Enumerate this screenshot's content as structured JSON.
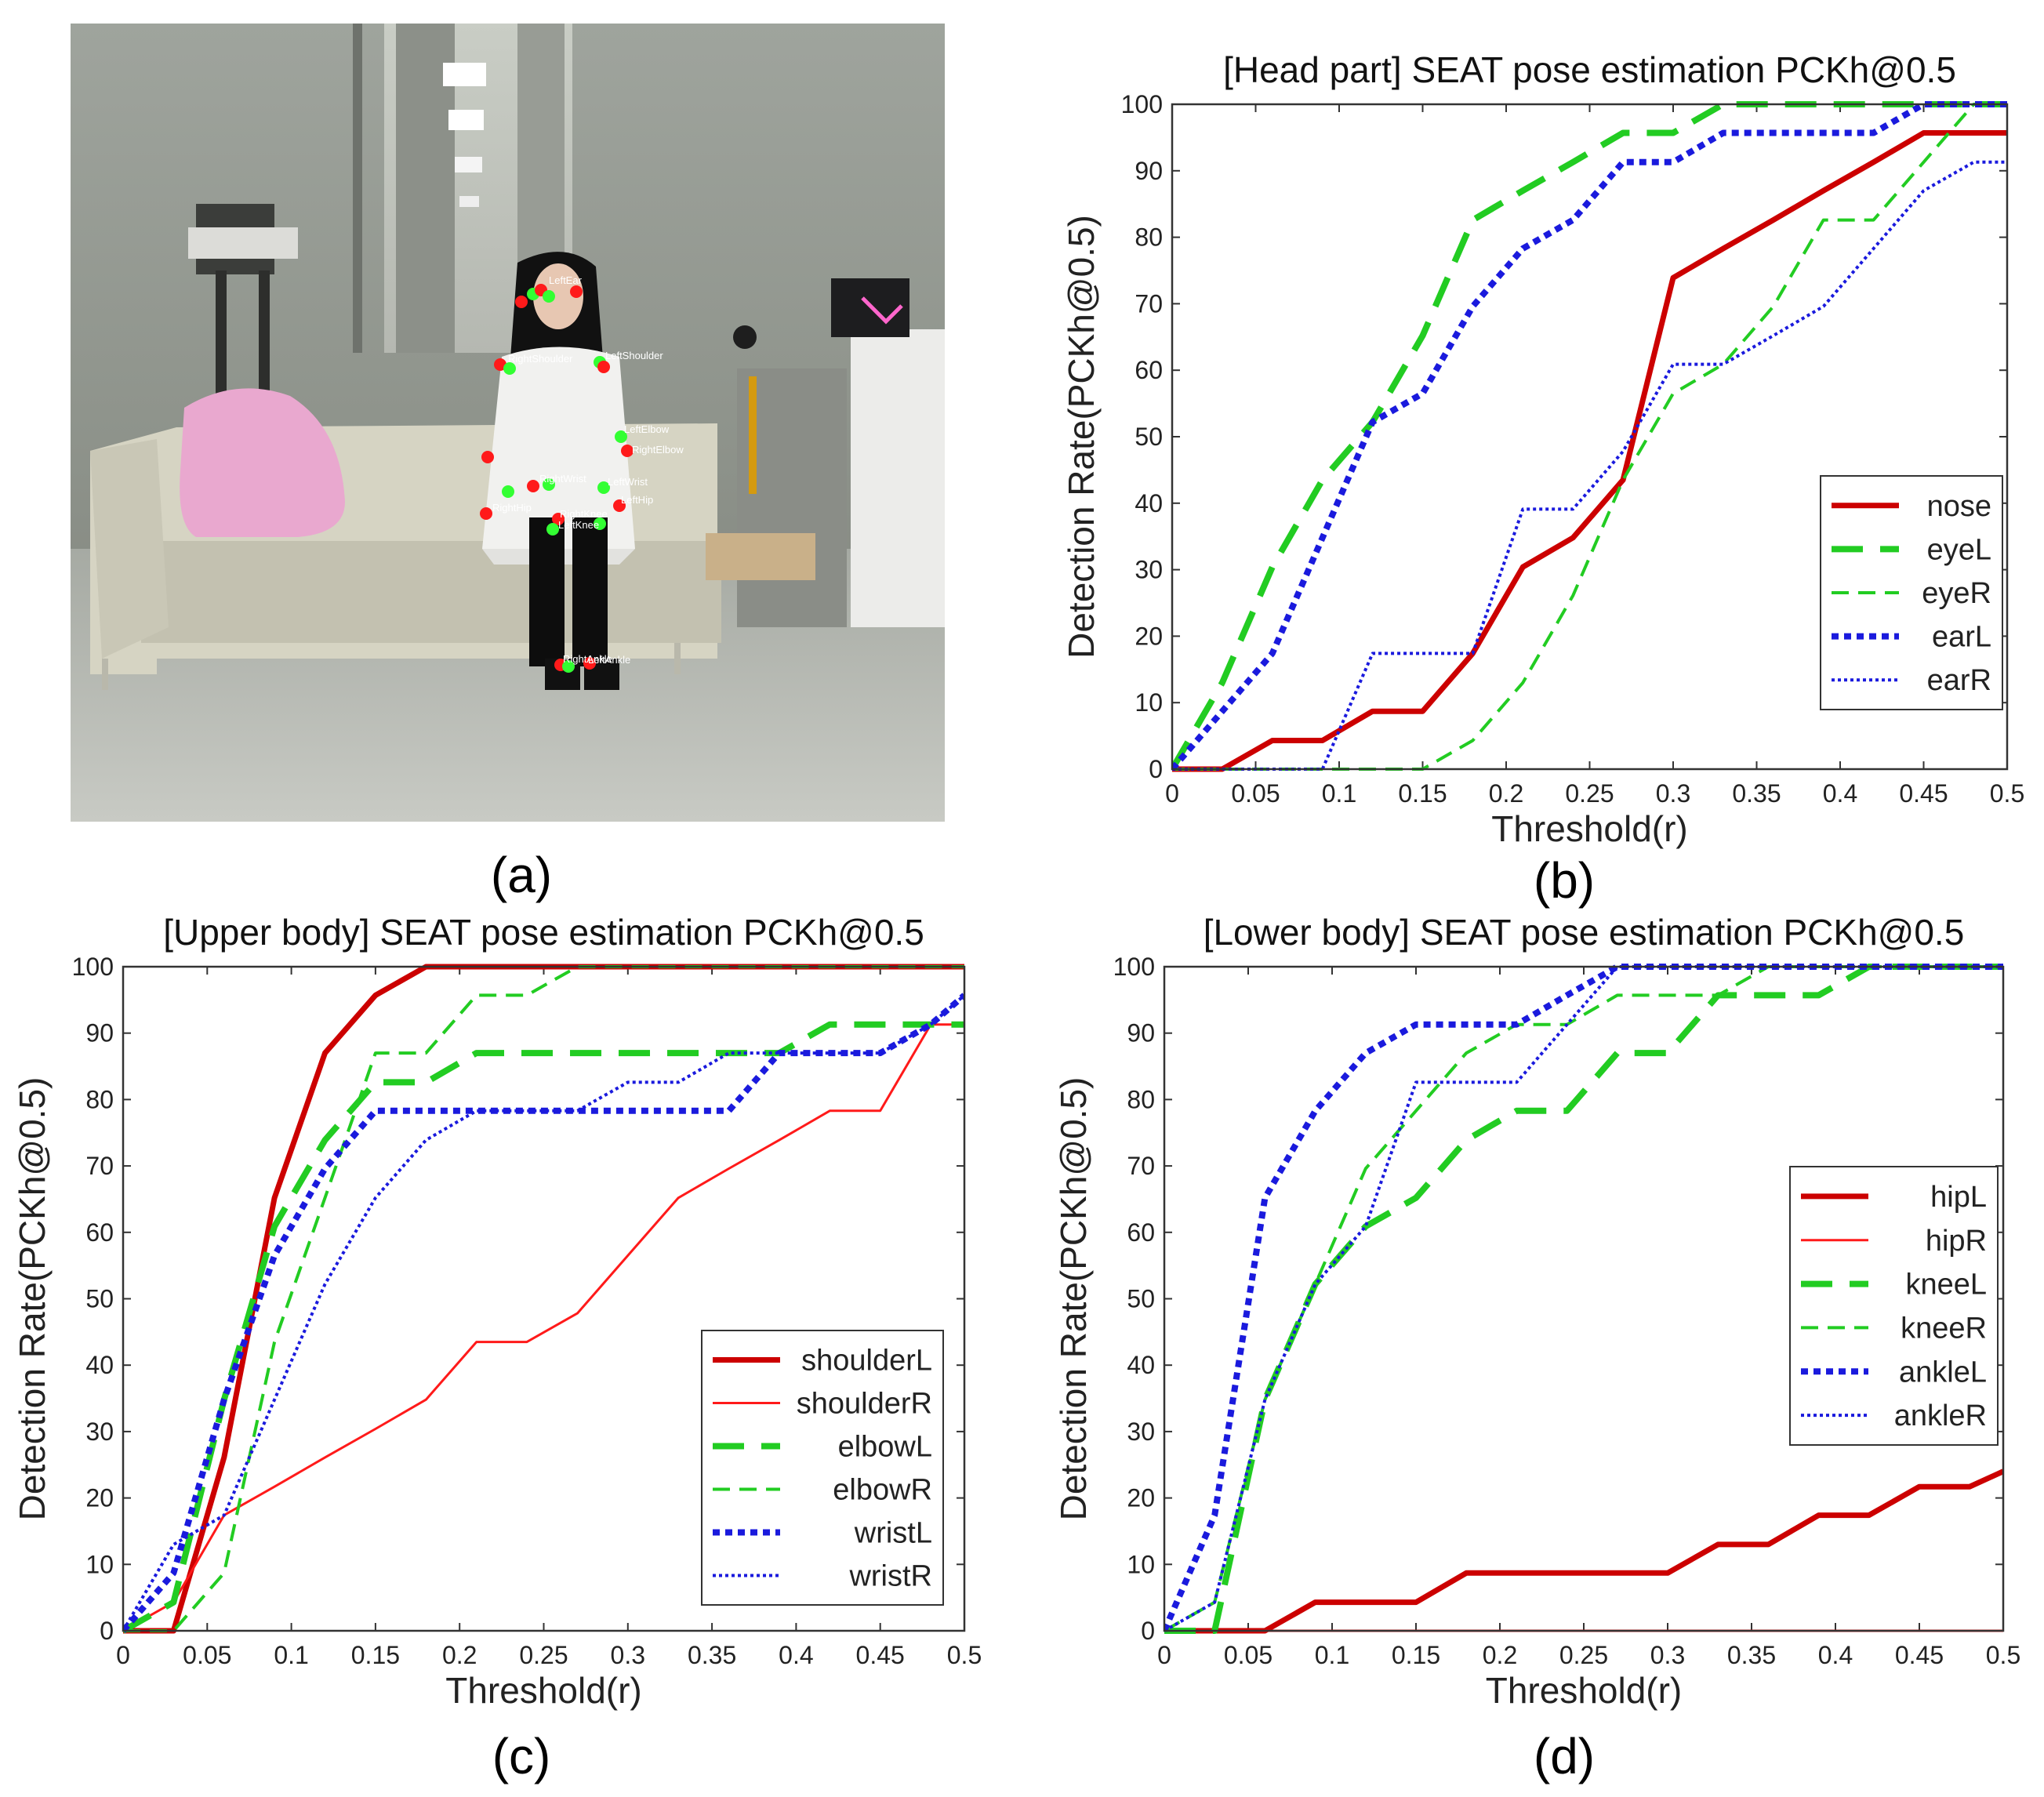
{
  "captions": {
    "a": "(a)",
    "b": "(b)",
    "c": "(c)",
    "d": "(d)"
  },
  "colors": {
    "red": "#cc0000",
    "green": "#22cc22",
    "blue": "#1a1add",
    "keypoint_red": "#ff1a1a",
    "keypoint_green": "#33ff33"
  },
  "photo": {
    "keypoint_labels": [
      "LeftEar",
      "RightShoulder",
      "LeftShoulder",
      "LeftElbow",
      "RightElbow",
      "RightWrist",
      "LeftWrist",
      "RightHip",
      "LeftHip",
      "RightKnee",
      "LeftKnee",
      "RightAnkle",
      "LeftAnkle"
    ]
  },
  "chart_data": [
    {
      "id": "head",
      "type": "line",
      "title": "[Head part] SEAT pose estimation PCKh@0.5",
      "xlabel": "Threshold(r)",
      "ylabel": "Detection Rate(PCKh@0.5)",
      "xlim": [
        0,
        0.5
      ],
      "ylim": [
        0,
        100
      ],
      "xticks": [
        0,
        0.05,
        0.1,
        0.15,
        0.2,
        0.25,
        0.3,
        0.35,
        0.4,
        0.45,
        0.5
      ],
      "xtick_labels": [
        "0",
        "0.05",
        "0.1",
        "0.15",
        "0.2",
        "0.25",
        "0.3",
        "0.35",
        "0.4",
        "0.45",
        "0.5"
      ],
      "yticks": [
        0,
        10,
        20,
        30,
        40,
        50,
        60,
        70,
        80,
        90,
        100
      ],
      "ytick_labels": [
        "0",
        "10",
        "20",
        "30",
        "40",
        "50",
        "60",
        "70",
        "80",
        "90",
        "100"
      ],
      "legend": "lower-right",
      "series": [
        {
          "name": "nose",
          "color": "#cc0000",
          "style": "solid",
          "width": 7,
          "x": [
            0,
            0.03,
            0.06,
            0.09,
            0.12,
            0.15,
            0.18,
            0.21,
            0.24,
            0.27,
            0.3,
            0.33,
            0.36,
            0.39,
            0.42,
            0.45,
            0.48,
            0.5
          ],
          "y": [
            0,
            0,
            4.3,
            4.3,
            8.7,
            8.7,
            17.4,
            30.4,
            34.8,
            43.5,
            73.9,
            78.3,
            82.6,
            87,
            91.3,
            95.7,
            95.7,
            95.7
          ]
        },
        {
          "name": "eyeL",
          "color": "#22cc22",
          "style": "dashed-thick",
          "width": 8,
          "x": [
            0,
            0.03,
            0.06,
            0.09,
            0.12,
            0.15,
            0.18,
            0.21,
            0.24,
            0.27,
            0.3,
            0.33,
            0.36,
            0.39,
            0.42,
            0.45,
            0.48,
            0.5
          ],
          "y": [
            0,
            13,
            30.4,
            43.5,
            52.2,
            65.2,
            82.6,
            87,
            91.3,
            95.7,
            95.7,
            100,
            100,
            100,
            100,
            100,
            100,
            100
          ]
        },
        {
          "name": "eyeR",
          "color": "#22cc22",
          "style": "dashed",
          "width": 4,
          "x": [
            0,
            0.03,
            0.06,
            0.09,
            0.12,
            0.15,
            0.18,
            0.21,
            0.24,
            0.27,
            0.3,
            0.33,
            0.36,
            0.39,
            0.42,
            0.45,
            0.48,
            0.5
          ],
          "y": [
            0,
            0,
            0,
            0,
            0,
            0,
            4.3,
            13,
            26.1,
            43.5,
            56.5,
            60.9,
            69.6,
            82.6,
            82.6,
            91.3,
            100,
            100
          ]
        },
        {
          "name": "earL",
          "color": "#1a1add",
          "style": "dotted-thick",
          "width": 8,
          "x": [
            0,
            0.03,
            0.06,
            0.09,
            0.12,
            0.15,
            0.18,
            0.21,
            0.24,
            0.27,
            0.3,
            0.33,
            0.36,
            0.39,
            0.42,
            0.45,
            0.48,
            0.5
          ],
          "y": [
            0,
            8.7,
            17.4,
            34.8,
            52.2,
            56.5,
            69.6,
            78.3,
            82.6,
            91.3,
            91.3,
            95.7,
            95.7,
            95.7,
            95.7,
            100,
            100,
            100
          ]
        },
        {
          "name": "earR",
          "color": "#1a1add",
          "style": "dotted",
          "width": 4,
          "x": [
            0,
            0.03,
            0.06,
            0.09,
            0.12,
            0.15,
            0.18,
            0.21,
            0.24,
            0.27,
            0.3,
            0.33,
            0.36,
            0.39,
            0.42,
            0.45,
            0.48,
            0.5
          ],
          "y": [
            0,
            0,
            0,
            0,
            17.4,
            17.4,
            17.4,
            39.1,
            39.1,
            47.8,
            60.9,
            60.9,
            65.2,
            69.6,
            78.3,
            87,
            91.3,
            91.3
          ]
        }
      ]
    },
    {
      "id": "upper",
      "type": "line",
      "title": "[Upper body] SEAT pose estimation PCKh@0.5",
      "xlabel": "Threshold(r)",
      "ylabel": "Detection Rate(PCKh@0.5)",
      "xlim": [
        0,
        0.5
      ],
      "ylim": [
        0,
        100
      ],
      "xticks": [
        0,
        0.05,
        0.1,
        0.15,
        0.2,
        0.25,
        0.3,
        0.35,
        0.4,
        0.45,
        0.5
      ],
      "xtick_labels": [
        "0",
        "0.05",
        "0.1",
        "0.15",
        "0.2",
        "0.25",
        "0.3",
        "0.35",
        "0.4",
        "0.45",
        "0.5"
      ],
      "yticks": [
        0,
        10,
        20,
        30,
        40,
        50,
        60,
        70,
        80,
        90,
        100
      ],
      "ytick_labels": [
        "0",
        "10",
        "20",
        "30",
        "40",
        "50",
        "60",
        "70",
        "80",
        "90",
        "100"
      ],
      "legend": "lower-right",
      "series": [
        {
          "name": "shoulderL",
          "color": "#cc0000",
          "style": "solid",
          "width": 7,
          "x": [
            0,
            0.03,
            0.06,
            0.09,
            0.12,
            0.15,
            0.18,
            0.21,
            0.24,
            0.27,
            0.3,
            0.33,
            0.36,
            0.39,
            0.42,
            0.45,
            0.48,
            0.5
          ],
          "y": [
            0,
            0,
            26.1,
            65.2,
            87,
            95.7,
            100,
            100,
            100,
            100,
            100,
            100,
            100,
            100,
            100,
            100,
            100,
            100
          ]
        },
        {
          "name": "shoulderR",
          "color": "#ff1a1a",
          "style": "solid",
          "width": 3,
          "x": [
            0,
            0.03,
            0.06,
            0.09,
            0.12,
            0.15,
            0.18,
            0.21,
            0.24,
            0.27,
            0.3,
            0.33,
            0.36,
            0.39,
            0.42,
            0.45,
            0.48,
            0.5
          ],
          "y": [
            0,
            4.3,
            17.4,
            21.7,
            26.1,
            30.4,
            34.8,
            43.5,
            43.5,
            47.8,
            56.5,
            65.2,
            69.6,
            73.9,
            78.3,
            78.3,
            91.3,
            91.3
          ]
        },
        {
          "name": "elbowL",
          "color": "#22cc22",
          "style": "dashed-thick",
          "width": 8,
          "x": [
            0,
            0.03,
            0.06,
            0.09,
            0.12,
            0.15,
            0.18,
            0.21,
            0.24,
            0.27,
            0.3,
            0.33,
            0.36,
            0.39,
            0.42,
            0.45,
            0.48,
            0.5
          ],
          "y": [
            0,
            4.3,
            34.8,
            60.9,
            73.9,
            82.6,
            82.6,
            87,
            87,
            87,
            87,
            87,
            87,
            87,
            91.3,
            91.3,
            91.3,
            91.3
          ]
        },
        {
          "name": "elbowR",
          "color": "#22cc22",
          "style": "dashed",
          "width": 4,
          "x": [
            0,
            0.03,
            0.06,
            0.09,
            0.12,
            0.15,
            0.18,
            0.21,
            0.24,
            0.27,
            0.3,
            0.33,
            0.36,
            0.39,
            0.42,
            0.45,
            0.48,
            0.5
          ],
          "y": [
            0,
            0,
            8.7,
            43.5,
            65.2,
            87,
            87,
            95.7,
            95.7,
            100,
            100,
            100,
            100,
            100,
            100,
            100,
            100,
            100
          ]
        },
        {
          "name": "wristL",
          "color": "#1a1add",
          "style": "dotted-thick",
          "width": 8,
          "x": [
            0,
            0.03,
            0.06,
            0.09,
            0.12,
            0.15,
            0.18,
            0.21,
            0.24,
            0.27,
            0.3,
            0.33,
            0.36,
            0.39,
            0.42,
            0.45,
            0.48,
            0.5
          ],
          "y": [
            0,
            8.7,
            34.8,
            56.5,
            69.6,
            78.3,
            78.3,
            78.3,
            78.3,
            78.3,
            78.3,
            78.3,
            78.3,
            87,
            87,
            87,
            91.3,
            95.7
          ]
        },
        {
          "name": "wristR",
          "color": "#1a1add",
          "style": "dotted",
          "width": 4,
          "x": [
            0,
            0.03,
            0.06,
            0.09,
            0.12,
            0.15,
            0.18,
            0.21,
            0.24,
            0.27,
            0.3,
            0.33,
            0.36,
            0.39,
            0.42,
            0.45,
            0.48,
            0.5
          ],
          "y": [
            0,
            13,
            17.4,
            34.8,
            52.2,
            65.2,
            73.9,
            78.3,
            78.3,
            78.3,
            82.6,
            82.6,
            87,
            87,
            87,
            87,
            91.3,
            95.7
          ]
        }
      ]
    },
    {
      "id": "lower",
      "type": "line",
      "title": "[Lower body] SEAT pose estimation PCKh@0.5",
      "xlabel": "Threshold(r)",
      "ylabel": "Detection Rate(PCKh@0.5)",
      "xlim": [
        0,
        0.5
      ],
      "ylim": [
        0,
        100
      ],
      "xticks": [
        0,
        0.05,
        0.1,
        0.15,
        0.2,
        0.25,
        0.3,
        0.35,
        0.4,
        0.45,
        0.5
      ],
      "xtick_labels": [
        "0",
        "0.05",
        "0.1",
        "0.15",
        "0.2",
        "0.25",
        "0.3",
        "0.35",
        "0.4",
        "0.45",
        "0.5"
      ],
      "yticks": [
        0,
        10,
        20,
        30,
        40,
        50,
        60,
        70,
        80,
        90,
        100
      ],
      "ytick_labels": [
        "0",
        "10",
        "20",
        "30",
        "40",
        "50",
        "60",
        "70",
        "80",
        "90",
        "100"
      ],
      "legend": "right",
      "series": [
        {
          "name": "hipL",
          "color": "#cc0000",
          "style": "solid",
          "width": 7,
          "x": [
            0,
            0.03,
            0.06,
            0.09,
            0.12,
            0.15,
            0.18,
            0.21,
            0.24,
            0.27,
            0.3,
            0.33,
            0.36,
            0.39,
            0.42,
            0.45,
            0.48,
            0.5
          ],
          "y": [
            0,
            0,
            0,
            4.3,
            4.3,
            4.3,
            8.7,
            8.7,
            8.7,
            8.7,
            8.7,
            13,
            13,
            17.4,
            17.4,
            21.7,
            21.7,
            24
          ]
        },
        {
          "name": "hipR",
          "color": "#ff1a1a",
          "style": "solid",
          "width": 3,
          "x": [
            0,
            0.5
          ],
          "y": [
            0,
            0
          ]
        },
        {
          "name": "kneeL",
          "color": "#22cc22",
          "style": "dashed-thick",
          "width": 8,
          "x": [
            0,
            0.03,
            0.06,
            0.09,
            0.12,
            0.15,
            0.18,
            0.21,
            0.24,
            0.27,
            0.3,
            0.33,
            0.36,
            0.39,
            0.42,
            0.45,
            0.48,
            0.5
          ],
          "y": [
            0,
            0,
            34.8,
            52.2,
            60.9,
            65.2,
            73.9,
            78.3,
            78.3,
            87,
            87,
            95.7,
            95.7,
            95.7,
            100,
            100,
            100,
            100
          ]
        },
        {
          "name": "kneeR",
          "color": "#22cc22",
          "style": "dashed",
          "width": 4,
          "x": [
            0,
            0.03,
            0.06,
            0.09,
            0.12,
            0.15,
            0.18,
            0.21,
            0.24,
            0.27,
            0.3,
            0.33,
            0.36,
            0.39,
            0.42,
            0.45,
            0.48,
            0.5
          ],
          "y": [
            0,
            4.3,
            34.8,
            52.2,
            69.6,
            78.3,
            87,
            91.3,
            91.3,
            95.7,
            95.7,
            95.7,
            100,
            100,
            100,
            100,
            100,
            100
          ]
        },
        {
          "name": "ankleL",
          "color": "#1a1add",
          "style": "dotted-thick",
          "width": 8,
          "x": [
            0,
            0.03,
            0.06,
            0.09,
            0.12,
            0.15,
            0.18,
            0.21,
            0.24,
            0.27,
            0.3,
            0.33,
            0.36,
            0.39,
            0.42,
            0.45,
            0.48,
            0.5
          ],
          "y": [
            0,
            17.4,
            65.2,
            78.3,
            87,
            91.3,
            91.3,
            91.3,
            95.7,
            100,
            100,
            100,
            100,
            100,
            100,
            100,
            100,
            100
          ]
        },
        {
          "name": "ankleR",
          "color": "#1a1add",
          "style": "dotted",
          "width": 4,
          "x": [
            0,
            0.03,
            0.06,
            0.09,
            0.12,
            0.15,
            0.18,
            0.21,
            0.24,
            0.27,
            0.3,
            0.33,
            0.36,
            0.39,
            0.42,
            0.45,
            0.48,
            0.5
          ],
          "y": [
            0,
            4.3,
            34.8,
            52.2,
            60.9,
            82.6,
            82.6,
            82.6,
            91.3,
            100,
            100,
            100,
            100,
            100,
            100,
            100,
            100,
            100
          ]
        }
      ]
    }
  ]
}
